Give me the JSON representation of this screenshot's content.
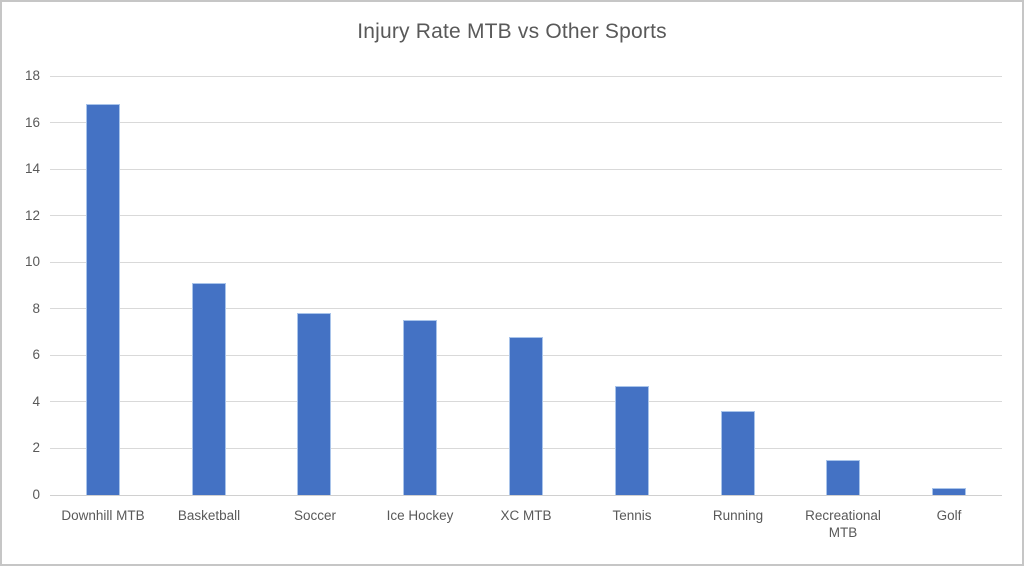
{
  "chart_data": {
    "type": "bar",
    "title": "Injury Rate MTB vs Other Sports",
    "categories": [
      "Downhill MTB",
      "Basketball",
      "Soccer",
      "Ice Hockey",
      "XC MTB",
      "Tennis",
      "Running",
      "Recreational MTB",
      "Golf"
    ],
    "values": [
      16.8,
      9.1,
      7.8,
      7.5,
      6.8,
      4.7,
      3.6,
      1.5,
      0.3
    ],
    "xlabel": "",
    "ylabel": "",
    "ylim": [
      0,
      18
    ],
    "y_ticks": [
      0,
      2,
      4,
      6,
      8,
      10,
      12,
      14,
      16,
      18
    ],
    "grid": "horizontal",
    "legend": "none",
    "colors": {
      "bar_fill": "#4472C4",
      "bar_edge_highlight": "#A9C4EA",
      "gridline": "#D9D9D9",
      "axis_text": "#595959",
      "title_text": "#595959",
      "frame_border": "#C6C6C6",
      "background": "#FFFFFF"
    }
  }
}
